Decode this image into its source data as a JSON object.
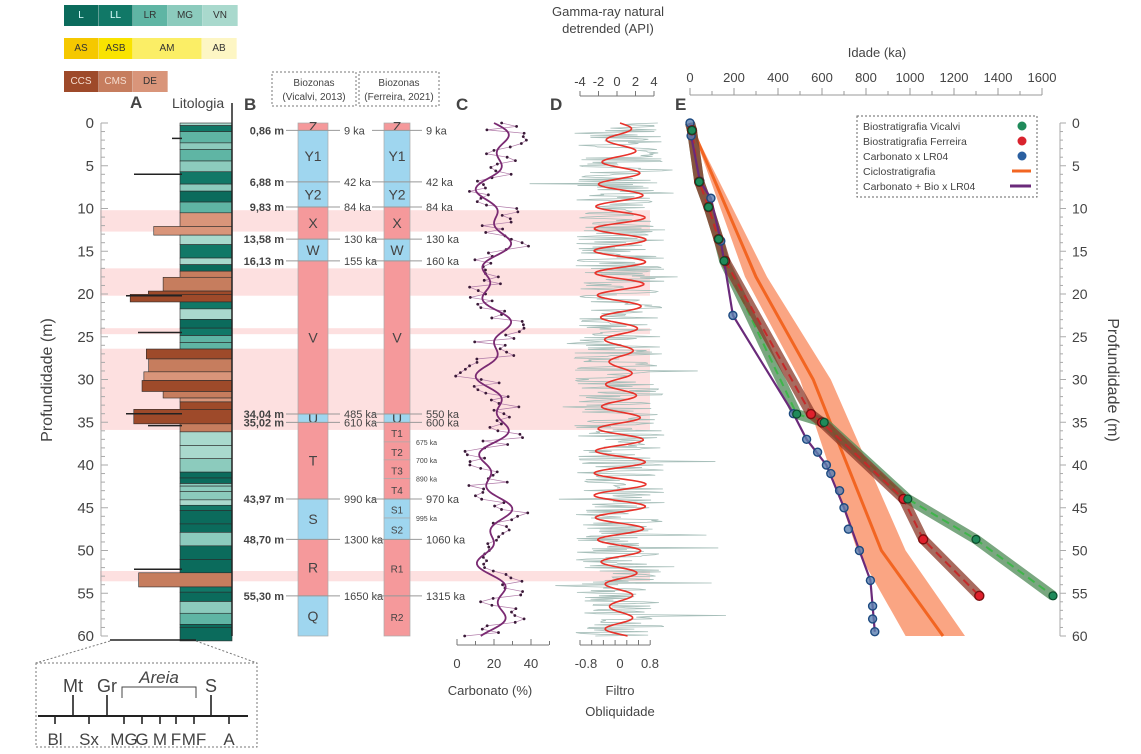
{
  "legend_bars": {
    "row1": [
      {
        "label": "L",
        "color": "#0b6b5c"
      },
      {
        "label": "LL",
        "color": "#117867"
      },
      {
        "label": "LR",
        "color": "#5fb5a4"
      },
      {
        "label": "MG",
        "color": "#8ccbbd"
      },
      {
        "label": "VN",
        "color": "#a9d9cd"
      }
    ],
    "row2": [
      {
        "label": "AS",
        "color": "#f5c800"
      },
      {
        "label": "ASB",
        "color": "#f9e300"
      },
      {
        "label": "AM",
        "color": "#fbee66"
      },
      {
        "label": "AB",
        "color": "#fdf6c4"
      }
    ],
    "row3": [
      {
        "label": "CCS",
        "color": "#9e4a2a"
      },
      {
        "label": "CMS",
        "color": "#c67d5e"
      },
      {
        "label": "DE",
        "color": "#d9957a"
      }
    ]
  },
  "panels": {
    "A": "A",
    "B": "B",
    "C": "C",
    "D": "D",
    "E": "E",
    "lithology_title": "Litologia",
    "biozone_vicalvi": [
      "Biozonas",
      "(Vicalvi, 2013)"
    ],
    "biozone_ferreira": [
      "Biozonas",
      "(Ferreira, 2021)"
    ]
  },
  "grain_scale": {
    "top_labels": [
      "Mt",
      "Gr",
      "S"
    ],
    "bracket_label": "Areia",
    "bottom_labels": [
      "Bl",
      "Sx",
      "MG",
      "G",
      "M",
      "F",
      "MF",
      "A"
    ]
  },
  "highlight_bands_m": [
    [
      10.2,
      12.7
    ],
    [
      17.0,
      20.2
    ],
    [
      24.0,
      24.7
    ],
    [
      26.4,
      35.9
    ],
    [
      52.4,
      53.6
    ]
  ],
  "chart_data": [
    {
      "type": "table",
      "title": "Biozonas (Vicalvi, 2013)",
      "ylabel": "Profundidade (m)",
      "ylim": [
        0,
        60
      ],
      "yticks": [
        0,
        5,
        10,
        15,
        20,
        25,
        30,
        35,
        40,
        45,
        50,
        55,
        60
      ],
      "zones": [
        {
          "name": "Z",
          "top": 0,
          "bottom": 0.86,
          "color": "pink"
        },
        {
          "name": "Y1",
          "top": 0.86,
          "bottom": 6.88,
          "color": "blue"
        },
        {
          "name": "Y2",
          "top": 6.88,
          "bottom": 9.83,
          "color": "blue"
        },
        {
          "name": "X",
          "top": 9.83,
          "bottom": 13.58,
          "color": "pink"
        },
        {
          "name": "W",
          "top": 13.58,
          "bottom": 16.13,
          "color": "blue"
        },
        {
          "name": "V",
          "top": 16.13,
          "bottom": 34.04,
          "color": "pink"
        },
        {
          "name": "U",
          "top": 34.04,
          "bottom": 35.02,
          "color": "blue"
        },
        {
          "name": "T",
          "top": 35.02,
          "bottom": 43.97,
          "color": "pink"
        },
        {
          "name": "S",
          "top": 43.97,
          "bottom": 48.7,
          "color": "blue"
        },
        {
          "name": "R",
          "top": 48.7,
          "bottom": 55.3,
          "color": "pink"
        },
        {
          "name": "Q",
          "top": 55.3,
          "bottom": 60,
          "color": "blue"
        }
      ],
      "boundaries": [
        {
          "depth": 0.86,
          "depth_label": "0,86 m",
          "age_label": "9 ka"
        },
        {
          "depth": 6.88,
          "depth_label": "6,88 m",
          "age_label": "42 ka"
        },
        {
          "depth": 9.83,
          "depth_label": "9,83 m",
          "age_label": "84 ka"
        },
        {
          "depth": 13.58,
          "depth_label": "13,58 m",
          "age_label": "130 ka"
        },
        {
          "depth": 16.13,
          "depth_label": "16,13 m",
          "age_label": "155 ka"
        },
        {
          "depth": 34.04,
          "depth_label": "34,04 m",
          "age_label": "485 ka"
        },
        {
          "depth": 35.02,
          "depth_label": "35,02 m",
          "age_label": "610 ka"
        },
        {
          "depth": 43.97,
          "depth_label": "43,97 m",
          "age_label": "990 ka"
        },
        {
          "depth": 48.7,
          "depth_label": "48,70 m",
          "age_label": "1300 ka"
        },
        {
          "depth": 55.3,
          "depth_label": "55,30 m",
          "age_label": "1650 ka"
        }
      ]
    },
    {
      "type": "table",
      "title": "Biozonas (Ferreira, 2021)",
      "zones": [
        {
          "name": "Z",
          "top": 0,
          "bottom": 0.86,
          "color": "pink"
        },
        {
          "name": "Y1",
          "top": 0.86,
          "bottom": 6.88,
          "color": "blue"
        },
        {
          "name": "Y2",
          "top": 6.88,
          "bottom": 9.83,
          "color": "blue"
        },
        {
          "name": "X",
          "top": 9.83,
          "bottom": 13.58,
          "color": "pink"
        },
        {
          "name": "W",
          "top": 13.58,
          "bottom": 16.13,
          "color": "blue"
        },
        {
          "name": "V",
          "top": 16.13,
          "bottom": 34.04,
          "color": "pink"
        },
        {
          "name": "U",
          "top": 34.04,
          "bottom": 35.02,
          "color": "blue"
        },
        {
          "name": "T1",
          "top": 35.02,
          "bottom": 37.3,
          "color": "pink"
        },
        {
          "name": "T2",
          "top": 37.3,
          "bottom": 39.4,
          "color": "pink"
        },
        {
          "name": "T3",
          "top": 39.4,
          "bottom": 41.6,
          "color": "pink"
        },
        {
          "name": "T4",
          "top": 41.6,
          "bottom": 43.97,
          "color": "pink"
        },
        {
          "name": "S1",
          "top": 43.97,
          "bottom": 46.2,
          "color": "blue"
        },
        {
          "name": "S2",
          "top": 46.2,
          "bottom": 48.7,
          "color": "blue"
        },
        {
          "name": "R1",
          "top": 48.7,
          "bottom": 55.3,
          "color": "pink"
        },
        {
          "name": "R2",
          "top": 55.3,
          "bottom": 60,
          "color": "pink"
        }
      ],
      "boundaries": [
        {
          "depth": 0.86,
          "age_label": "9 ka"
        },
        {
          "depth": 6.88,
          "age_label": "42 ka"
        },
        {
          "depth": 9.83,
          "age_label": "84 ka"
        },
        {
          "depth": 13.58,
          "age_label": "130 ka"
        },
        {
          "depth": 16.13,
          "age_label": "160 ka"
        },
        {
          "depth": 34.04,
          "age_label": "550 ka"
        },
        {
          "depth": 35.02,
          "age_label": "600 ka"
        },
        {
          "depth": 43.97,
          "age_label": "970 ka"
        },
        {
          "depth": 48.7,
          "age_label": "1060 ka"
        },
        {
          "depth": 55.3,
          "age_label": "1315 ka"
        }
      ],
      "minor_labels": [
        {
          "depth": 37.3,
          "label": "675 ka"
        },
        {
          "depth": 39.4,
          "label": "700 ka"
        },
        {
          "depth": 41.6,
          "label": "890 ka"
        },
        {
          "depth": 46.2,
          "label": "995 ka"
        }
      ]
    },
    {
      "type": "line",
      "title": "C",
      "xlabel": "Carbonato (%)",
      "xlim": [
        0,
        50
      ],
      "xticks": [
        0,
        20,
        40
      ],
      "ylim": [
        0,
        60
      ],
      "series": [
        {
          "name": "Carbonato (%)",
          "color": "#7a2a72"
        }
      ]
    },
    {
      "type": "line",
      "title": "D",
      "top_label": [
        "Gamma-ray natural",
        "detrended (API)"
      ],
      "top_xticks": [
        -4,
        -2,
        0,
        2,
        4
      ],
      "xlabel": [
        "Filtro",
        "Obliquidade"
      ],
      "xticks": [
        -0.8,
        0,
        0.8
      ],
      "ylim": [
        0,
        60
      ],
      "series": [
        {
          "name": "Gamma-ray natural detrended",
          "color": "#a7bfba"
        },
        {
          "name": "Filtro Obliquidade",
          "color": "#e8322a"
        }
      ]
    },
    {
      "type": "line",
      "title": "E",
      "xlabel": "Idade (ka)",
      "ylabel": "Profundidade (m)",
      "xlim": [
        0,
        1600
      ],
      "ylim": [
        0,
        60
      ],
      "xticks": [
        0,
        200,
        400,
        600,
        800,
        1000,
        1200,
        1400,
        1600
      ],
      "yticks": [
        0,
        5,
        10,
        15,
        20,
        25,
        30,
        35,
        40,
        45,
        50,
        55,
        60
      ],
      "legend_position": "top-right",
      "series": [
        {
          "name": "Biostratigrafia Vicalvi",
          "color": "#1f8a5a",
          "marker": "circle",
          "points": [
            [
              0,
              0
            ],
            [
              9,
              0.86
            ],
            [
              42,
              6.88
            ],
            [
              84,
              9.83
            ],
            [
              130,
              13.58
            ],
            [
              155,
              16.13
            ],
            [
              485,
              34.04
            ],
            [
              610,
              35.02
            ],
            [
              990,
              43.97
            ],
            [
              1300,
              48.7
            ],
            [
              1650,
              55.3
            ]
          ]
        },
        {
          "name": "Biostratigrafia Ferreira",
          "color": "#d9232e",
          "marker": "circle",
          "points": [
            [
              0,
              0
            ],
            [
              9,
              0.86
            ],
            [
              42,
              6.88
            ],
            [
              84,
              9.83
            ],
            [
              130,
              13.58
            ],
            [
              160,
              16.13
            ],
            [
              550,
              34.04
            ],
            [
              600,
              35.02
            ],
            [
              970,
              43.97
            ],
            [
              1060,
              48.7
            ],
            [
              1315,
              55.3
            ]
          ]
        },
        {
          "name": "Carbonato x LR04",
          "color": "#2a5fa0",
          "marker": "circle",
          "points": [
            [
              0,
              0
            ],
            [
              5,
              1.5
            ],
            [
              45,
              6.8
            ],
            [
              95,
              8.8
            ],
            [
              140,
              13.8
            ],
            [
              195,
              22.5
            ],
            [
              470,
              34.0
            ],
            [
              530,
              37.0
            ],
            [
              580,
              38.5
            ],
            [
              620,
              40.0
            ],
            [
              640,
              41.0
            ],
            [
              680,
              43.0
            ],
            [
              700,
              45.0
            ],
            [
              720,
              47.5
            ],
            [
              770,
              50.0
            ],
            [
              820,
              53.5
            ],
            [
              830,
              56.5
            ],
            [
              830,
              58.0
            ],
            [
              840,
              59.5
            ]
          ]
        },
        {
          "name": "Ciclostratigrafia",
          "color": "#f26522",
          "marker": "line",
          "points": [
            [
              0,
              0
            ],
            [
              300,
              18
            ],
            [
              560,
              30
            ],
            [
              870,
              50
            ],
            [
              1150,
              60
            ]
          ],
          "band_min": [
            [
              0,
              0
            ],
            [
              250,
              18
            ],
            [
              500,
              30
            ],
            [
              760,
              50
            ],
            [
              980,
              60
            ]
          ],
          "band_max": [
            [
              0,
              0
            ],
            [
              350,
              18
            ],
            [
              640,
              30
            ],
            [
              980,
              50
            ],
            [
              1250,
              60
            ]
          ]
        },
        {
          "name": "Carbonato + Bio x LR04",
          "color": "#6a2a7a",
          "marker": "line",
          "points": [
            [
              0,
              0
            ],
            [
              5,
              1.5
            ],
            [
              45,
              6.8
            ],
            [
              95,
              8.8
            ],
            [
              140,
              13.8
            ],
            [
              195,
              22.5
            ],
            [
              470,
              34.0
            ],
            [
              530,
              37.0
            ],
            [
              620,
              40.0
            ],
            [
              700,
              45.0
            ],
            [
              770,
              50.0
            ],
            [
              820,
              53.5
            ],
            [
              840,
              59.5
            ]
          ]
        }
      ]
    }
  ]
}
